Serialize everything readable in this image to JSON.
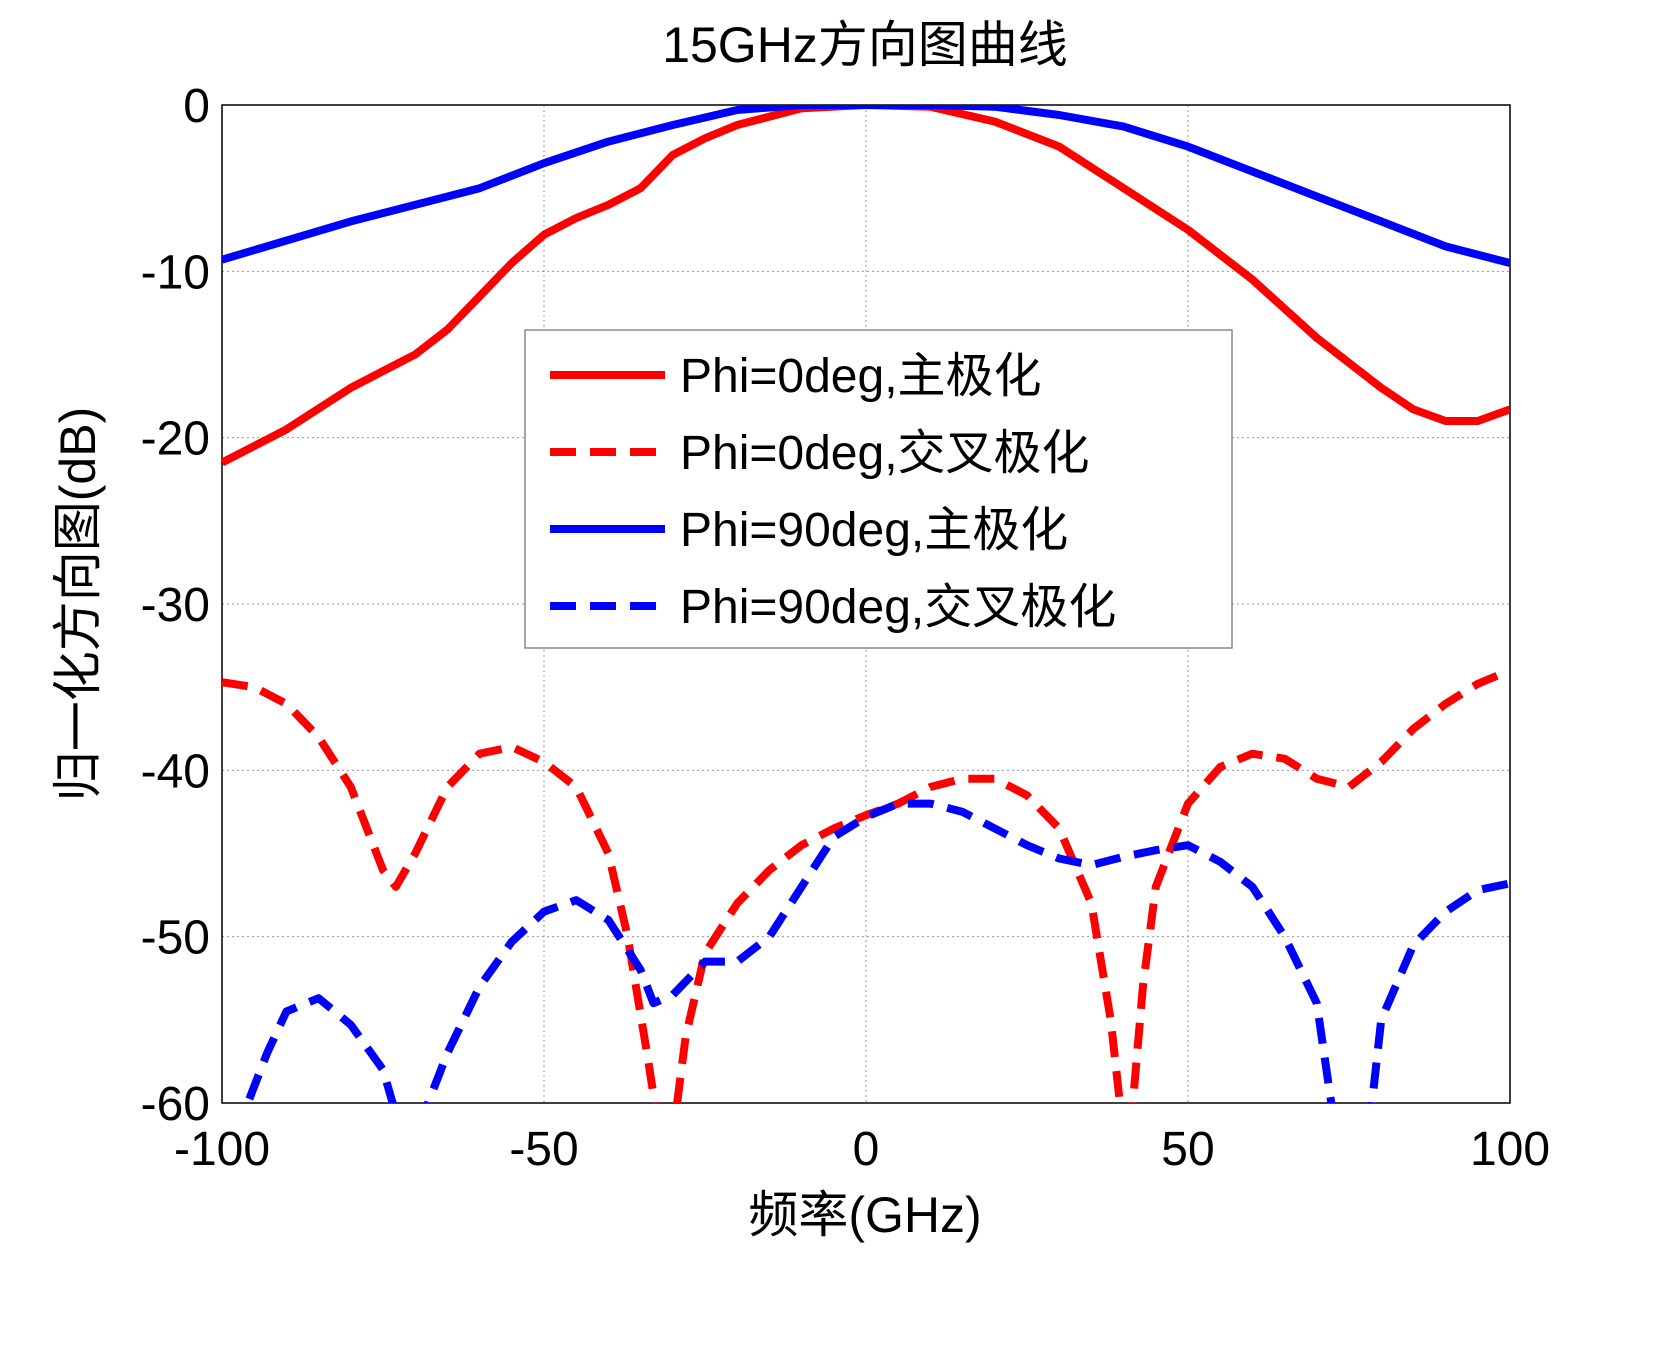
{
  "chart_data": {
    "type": "line",
    "title": "15GHz方向图曲线",
    "xlabel": "频率(GHz)",
    "ylabel": "归一化方向图(dB)",
    "xlim": [
      -100,
      100
    ],
    "ylim": [
      -60,
      0
    ],
    "xticks": [
      -100,
      -50,
      0,
      50,
      100
    ],
    "yticks": [
      0,
      -10,
      -20,
      -30,
      -40,
      -50,
      -60
    ],
    "grid": true,
    "legend_position": "center",
    "series": [
      {
        "name": "Phi=0deg,主极化",
        "color": "#ff0000",
        "dash": false,
        "x": [
          -100,
          -90,
          -80,
          -70,
          -65,
          -60,
          -55,
          -50,
          -45,
          -40,
          -35,
          -30,
          -25,
          -20,
          -10,
          0,
          10,
          20,
          30,
          40,
          50,
          60,
          70,
          80,
          85,
          90,
          95,
          100
        ],
        "y": [
          -21.5,
          -19.5,
          -17,
          -15,
          -13.5,
          -11.5,
          -9.5,
          -7.8,
          -6.8,
          -6,
          -5,
          -3,
          -2,
          -1.2,
          -0.2,
          0,
          -0.1,
          -1,
          -2.5,
          -5,
          -7.5,
          -10.5,
          -14,
          -17,
          -18.3,
          -19,
          -19,
          -18.3
        ]
      },
      {
        "name": "Phi=0deg,交叉极化",
        "color": "#ff0000",
        "dash": true,
        "x": [
          -100,
          -95,
          -90,
          -85,
          -80,
          -75,
          -73,
          -70,
          -65,
          -60,
          -55,
          -50,
          -45,
          -40,
          -37,
          -34,
          -32,
          -30,
          -28,
          -25,
          -20,
          -15,
          -10,
          -5,
          0,
          5,
          10,
          15,
          20,
          25,
          30,
          35,
          38,
          40,
          41,
          43,
          45,
          50,
          55,
          60,
          65,
          70,
          75,
          80,
          85,
          90,
          95,
          100
        ],
        "y": [
          -34.7,
          -35,
          -36,
          -38,
          -41,
          -46,
          -47,
          -45,
          -41,
          -39,
          -38.6,
          -39.5,
          -41,
          -45,
          -50,
          -57,
          -62,
          -62,
          -56,
          -51,
          -48,
          -46,
          -44.5,
          -43.5,
          -42.7,
          -42,
          -41,
          -40.5,
          -40.5,
          -41.5,
          -43.5,
          -48,
          -55,
          -62,
          -62,
          -53,
          -47,
          -42,
          -39.8,
          -39,
          -39.3,
          -40.5,
          -41,
          -39.5,
          -37.5,
          -36,
          -34.8,
          -34
        ]
      },
      {
        "name": "Phi=90deg,主极化",
        "color": "#0000ff",
        "dash": false,
        "x": [
          -100,
          -80,
          -60,
          -50,
          -40,
          -30,
          -20,
          -10,
          0,
          10,
          20,
          30,
          40,
          50,
          60,
          70,
          80,
          90,
          100
        ],
        "y": [
          -9.3,
          -7,
          -5,
          -3.5,
          -2.2,
          -1.2,
          -0.3,
          0,
          0,
          0,
          -0.1,
          -0.6,
          -1.3,
          -2.5,
          -4,
          -5.5,
          -7,
          -8.5,
          -9.5
        ]
      },
      {
        "name": "Phi=90deg,交叉极化",
        "color": "#0000ff",
        "dash": true,
        "x": [
          -98,
          -93,
          -90,
          -85,
          -80,
          -75,
          -72,
          -70,
          -65,
          -60,
          -55,
          -50,
          -45,
          -40,
          -35,
          -33,
          -30,
          -25,
          -20,
          -15,
          -10,
          -5,
          0,
          5,
          10,
          15,
          20,
          25,
          30,
          35,
          40,
          45,
          50,
          55,
          60,
          65,
          70,
          73,
          78,
          80,
          85,
          90,
          95,
          100
        ],
        "y": [
          -62,
          -57,
          -54.5,
          -53.7,
          -55.3,
          -58,
          -62,
          -62,
          -57,
          -53,
          -50.3,
          -48.5,
          -47.8,
          -49,
          -52,
          -54,
          -53.5,
          -51.5,
          -51.5,
          -50,
          -47,
          -44,
          -42.8,
          -42,
          -42,
          -42.5,
          -43.5,
          -44.5,
          -45.3,
          -45.7,
          -45.2,
          -44.8,
          -44.5,
          -45.5,
          -47,
          -50,
          -54,
          -62,
          -62,
          -55,
          -50.5,
          -48.5,
          -47.2,
          -46.8
        ]
      }
    ]
  }
}
